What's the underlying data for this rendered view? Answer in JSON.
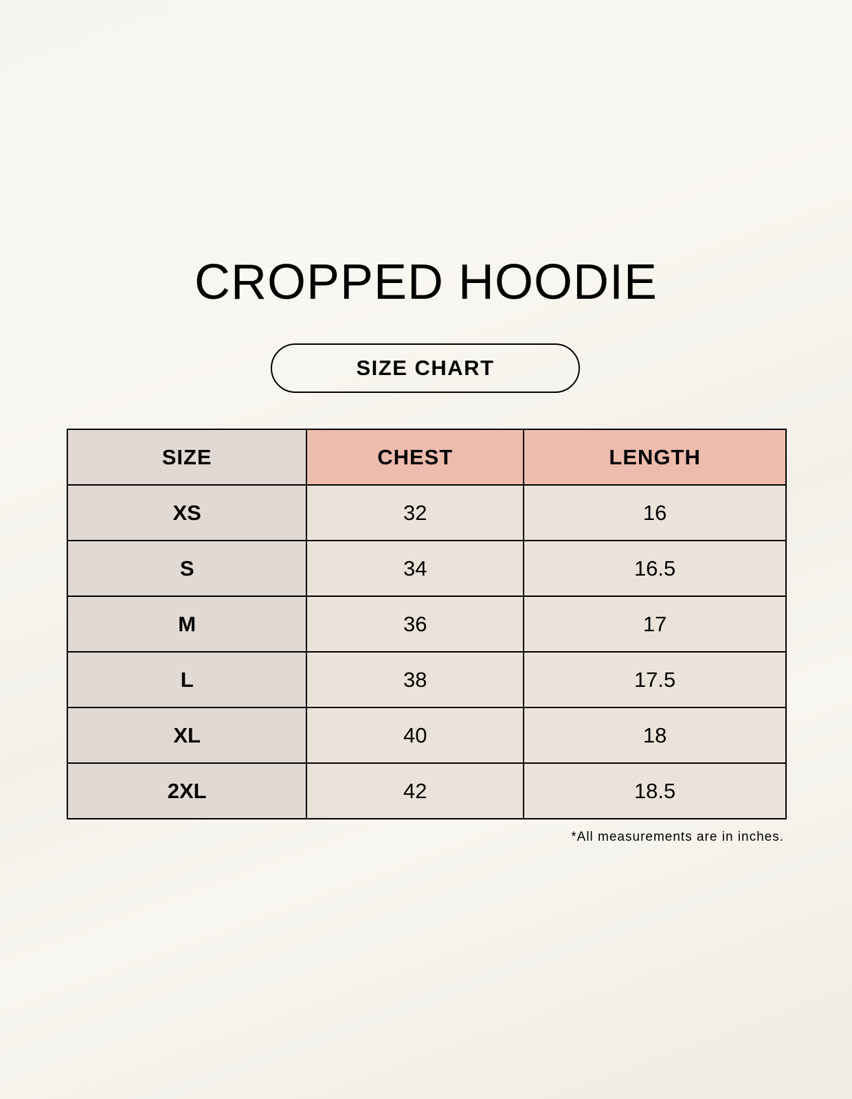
{
  "title": "CROPPED HOODIE",
  "subtitle": "SIZE CHART",
  "table": {
    "headers": [
      "SIZE",
      "CHEST",
      "LENGTH"
    ],
    "rows": [
      [
        "XS",
        "32",
        "16"
      ],
      [
        "S",
        "34",
        "16.5"
      ],
      [
        "M",
        "36",
        "17"
      ],
      [
        "L",
        "38",
        "17.5"
      ],
      [
        "XL",
        "40",
        "18"
      ],
      [
        "2XL",
        "42",
        "18.5"
      ]
    ]
  },
  "note": "*All measurements are in inches.",
  "colors": {
    "size_column": "#e1d9d4",
    "header_accent": "#edbcae",
    "value_cells": "#ebe3d9"
  }
}
